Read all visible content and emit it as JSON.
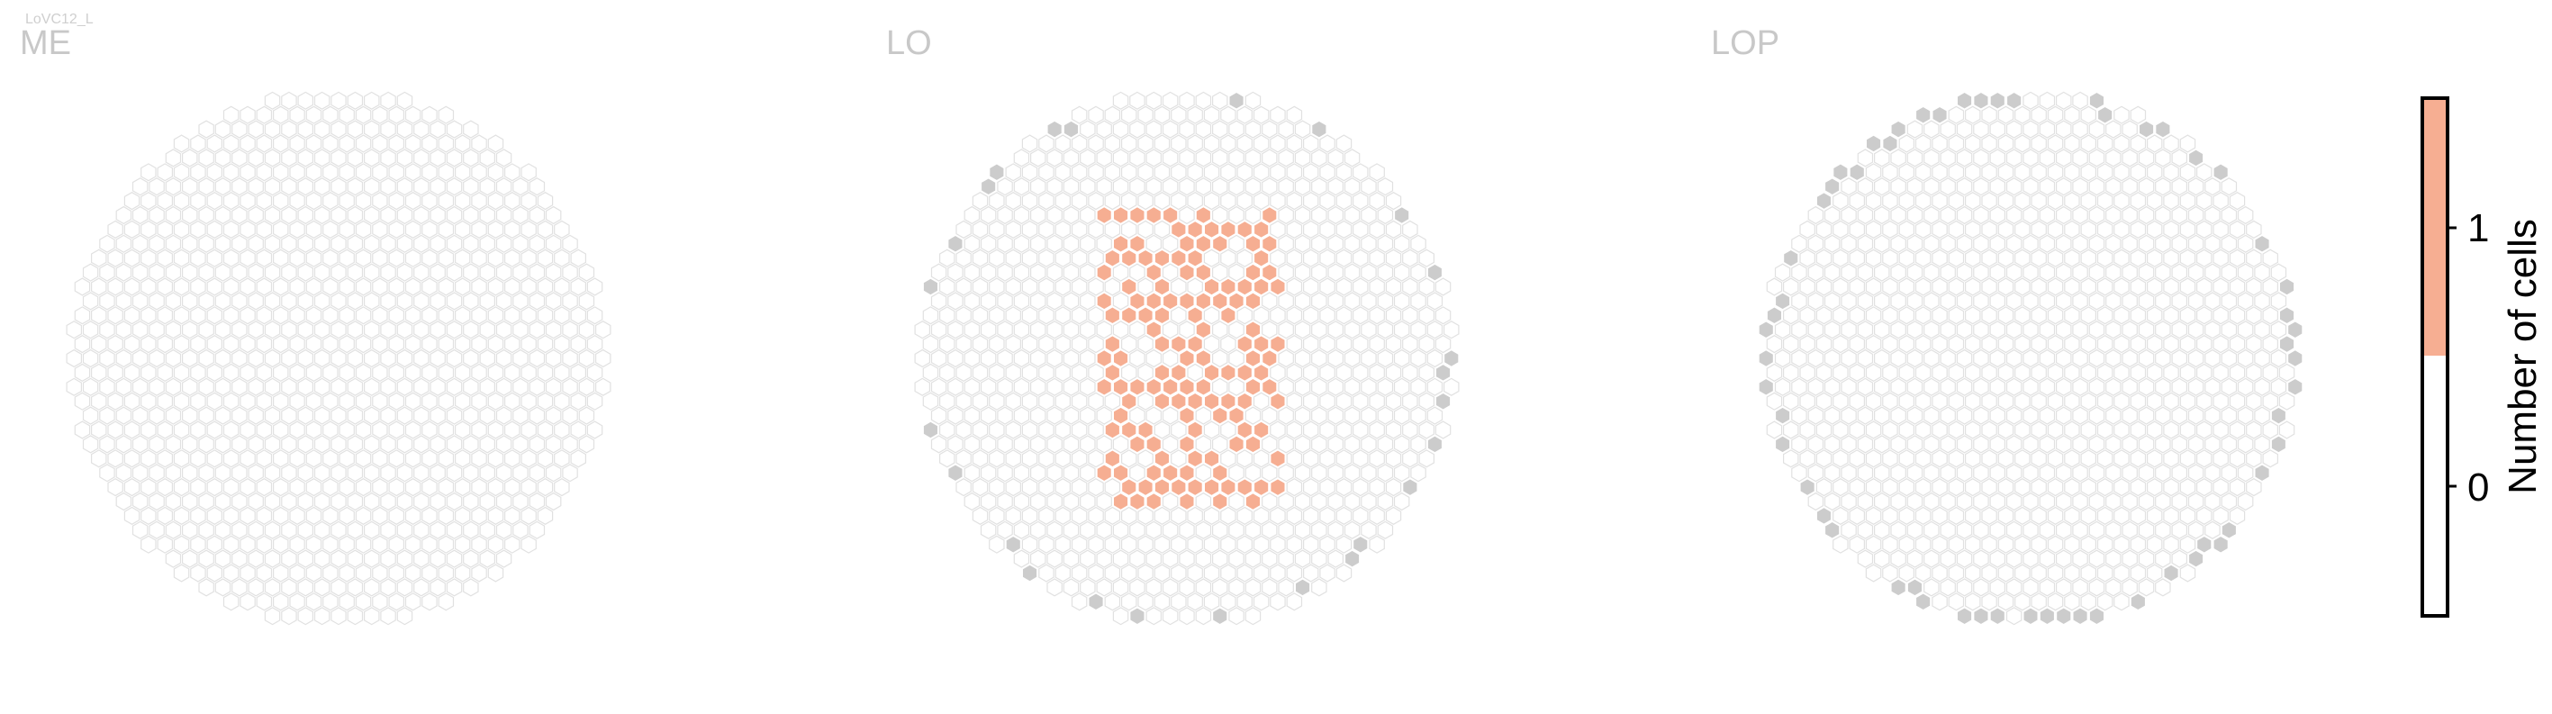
{
  "cell_type": "LoVC12_L",
  "chart_data": {
    "type": "heatmap",
    "description_grid": "hexagonal column map per neuropil",
    "panels": [
      {
        "label": "ME",
        "highlighted_columns": 0,
        "edge_columns_marked": 0
      },
      {
        "label": "LO",
        "highlighted_columns": 118,
        "edge_columns_marked": 23
      },
      {
        "label": "LOP",
        "highlighted_columns": 0,
        "edge_columns_marked": 66
      }
    ],
    "colorbar": {
      "label": "Number of cells",
      "ticks": [
        "0",
        "1"
      ],
      "range": [
        0,
        1
      ],
      "colors": {
        "0": "#ffffff",
        "1": "#f6ae92"
      }
    }
  },
  "colors": {
    "hex_outline": "#e1e1e1",
    "highlight_fill": "#f6ae92",
    "edge_fill": "#cccccc",
    "label_gray": "#c8c8c8"
  }
}
